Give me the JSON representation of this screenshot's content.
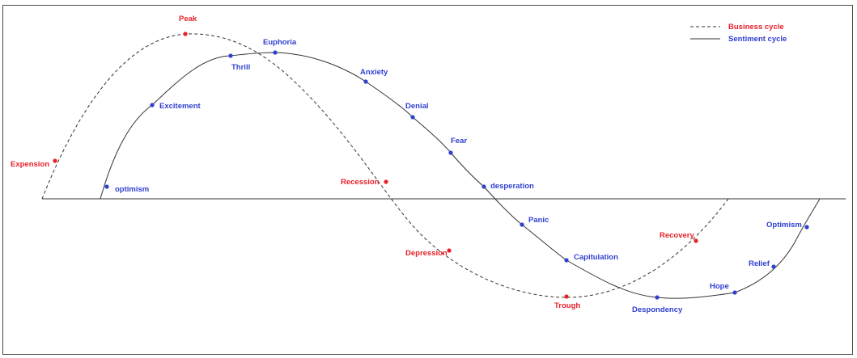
{
  "colors": {
    "business": "#e8202a",
    "sentiment": "#2f3fd0",
    "line": "#333333"
  },
  "legend": {
    "business_label": "Business cycle",
    "sentiment_label": "Sentiment cycle"
  },
  "business_points": {
    "expension": "Expension",
    "peak": "Peak",
    "recession": "Recession",
    "depression": "Depression",
    "trough": "Trough",
    "recovery": "Recovery"
  },
  "sentiment_points": {
    "optimism_start": "optimism",
    "excitement": "Excitement",
    "thrill": "Thrill",
    "euphoria": "Euphoria",
    "anxiety": "Anxiety",
    "denial": "Denial",
    "fear": "Fear",
    "desperation": "desperation",
    "panic": "Panic",
    "capitulation": "Capitulation",
    "despondency": "Despondency",
    "hope": "Hope",
    "relief": "Relief",
    "optimism_end": "Optimism"
  }
}
